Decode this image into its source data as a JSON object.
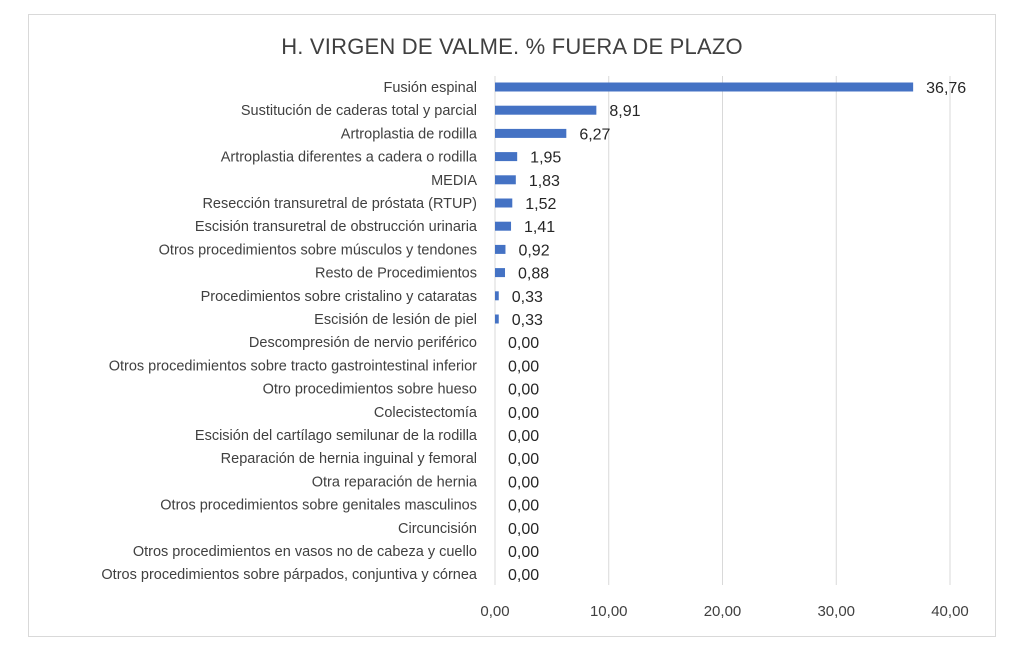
{
  "chart_data": {
    "type": "bar",
    "orientation": "horizontal",
    "title": "H. VIRGEN DE VALME. % FUERA DE PLAZO",
    "xlabel": "",
    "ylabel": "",
    "xlim": [
      0,
      40
    ],
    "x_ticks": [
      "0,00",
      "10,00",
      "20,00",
      "30,00",
      "40,00"
    ],
    "x_tick_values": [
      0,
      10,
      20,
      30,
      40
    ],
    "grid": "vertical",
    "bar_color": "#4472C4",
    "categories": [
      "Fusión espinal",
      "Sustitución de caderas total y parcial",
      "Artroplastia de rodilla",
      "Artroplastia diferentes a cadera o rodilla",
      "MEDIA",
      "Resección transuretral de próstata (RTUP)",
      "Escisión transuretral de obstrucción urinaria",
      "Otros procedimientos sobre músculos y tendones",
      "Resto de Procedimientos",
      "Procedimientos sobre cristalino y cataratas",
      "Escisión de lesión de piel",
      "Descompresión de nervio periférico",
      "Otros procedimientos sobre tracto gastrointestinal inferior",
      "Otro procedimientos sobre hueso",
      "Colecistectomía",
      "Escisión del cartílago semilunar de la rodilla",
      "Reparación de hernia inguinal y femoral",
      "Otra reparación de hernia",
      "Otros procedimientos sobre genitales masculinos",
      "Circuncisión",
      "Otros procedimientos en vasos no de cabeza y cuello",
      "Otros procedimientos sobre párpados, conjuntiva y córnea"
    ],
    "values": [
      36.76,
      8.91,
      6.27,
      1.95,
      1.83,
      1.52,
      1.41,
      0.92,
      0.88,
      0.33,
      0.33,
      0,
      0,
      0,
      0,
      0,
      0,
      0,
      0,
      0,
      0,
      0
    ],
    "value_labels": [
      "36,76",
      "8,91",
      "6,27",
      "1,95",
      "1,83",
      "1,52",
      "1,41",
      "0,92",
      "0,88",
      "0,33",
      "0,33",
      "0,00",
      "0,00",
      "0,00",
      "0,00",
      "0,00",
      "0,00",
      "0,00",
      "0,00",
      "0,00",
      "0,00",
      "0,00"
    ]
  }
}
